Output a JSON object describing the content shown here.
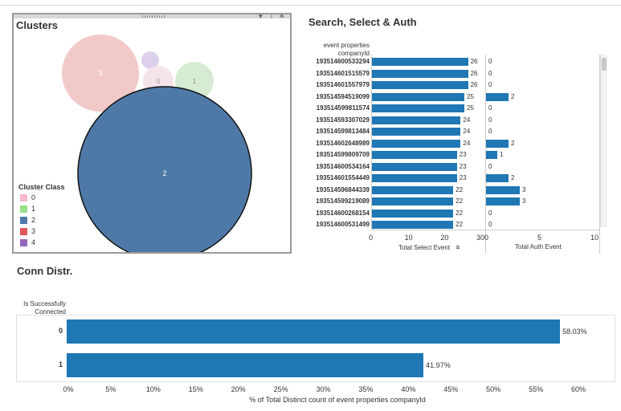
{
  "clusters": {
    "title": "Clusters",
    "bubbles": [
      {
        "label": "3",
        "color": "#f2c9c9"
      },
      {
        "label": "",
        "color": "#dcd0ec"
      },
      {
        "label": "0",
        "color": "#f5e3ea"
      },
      {
        "label": "1",
        "color": "#d6ecd2"
      },
      {
        "label": "2",
        "color": "#4e79a7"
      }
    ],
    "legend": {
      "title": "Cluster Class",
      "items": [
        {
          "label": "0",
          "color": "#f7b6d2"
        },
        {
          "label": "1",
          "color": "#98df8a"
        },
        {
          "label": "2",
          "color": "#4e79a7"
        },
        {
          "label": "3",
          "color": "#e15759"
        },
        {
          "label": "4",
          "color": "#9467bd"
        }
      ]
    }
  },
  "search_select": {
    "title": "Search, Select & Auth",
    "row_header": "event properties companyId",
    "rows": [
      {
        "id": "193514600533294",
        "select": 26,
        "auth": 0
      },
      {
        "id": "193514601515579",
        "select": 26,
        "auth": 0
      },
      {
        "id": "193514601557979",
        "select": 26,
        "auth": 0
      },
      {
        "id": "193514594519099",
        "select": 25,
        "auth": 2
      },
      {
        "id": "193514599811574",
        "select": 25,
        "auth": 0
      },
      {
        "id": "193514593307029",
        "select": 24,
        "auth": 0
      },
      {
        "id": "193514599813484",
        "select": 24,
        "auth": 0
      },
      {
        "id": "193514602648989",
        "select": 24,
        "auth": 2
      },
      {
        "id": "193514599809709",
        "select": 23,
        "auth": 1
      },
      {
        "id": "193514600534164",
        "select": 23,
        "auth": 0
      },
      {
        "id": "193514601554449",
        "select": 23,
        "auth": 2
      },
      {
        "id": "193514596844339",
        "select": 22,
        "auth": 3
      },
      {
        "id": "193514599219089",
        "select": 22,
        "auth": 3
      },
      {
        "id": "193514600268154",
        "select": 22,
        "auth": 0
      },
      {
        "id": "193514600531499",
        "select": 22,
        "auth": 0
      }
    ],
    "select_axis": {
      "title": "Total Select Event",
      "ticks": [
        "0",
        "10",
        "20",
        "30"
      ],
      "max": 30
    },
    "auth_axis": {
      "title": "Total Auth Event",
      "ticks": [
        "0",
        "5",
        "10"
      ],
      "max": 10
    },
    "bar_color": "#1f77b4"
  },
  "conn": {
    "title": "Conn Distr.",
    "row_header": "Is Successfully Connected",
    "rows": [
      {
        "label": "0",
        "value": 58.03,
        "text": "58.03%"
      },
      {
        "label": "1",
        "value": 41.97,
        "text": "41.97%"
      }
    ],
    "ticks": [
      "0%",
      "5%",
      "10%",
      "15%",
      "20%",
      "25%",
      "30%",
      "35%",
      "40%",
      "45%",
      "50%",
      "55%",
      "60%"
    ],
    "axis_title": "% of Total Distinct count of event properties companyId",
    "max": 60,
    "bar_color": "#1f77b4"
  }
}
